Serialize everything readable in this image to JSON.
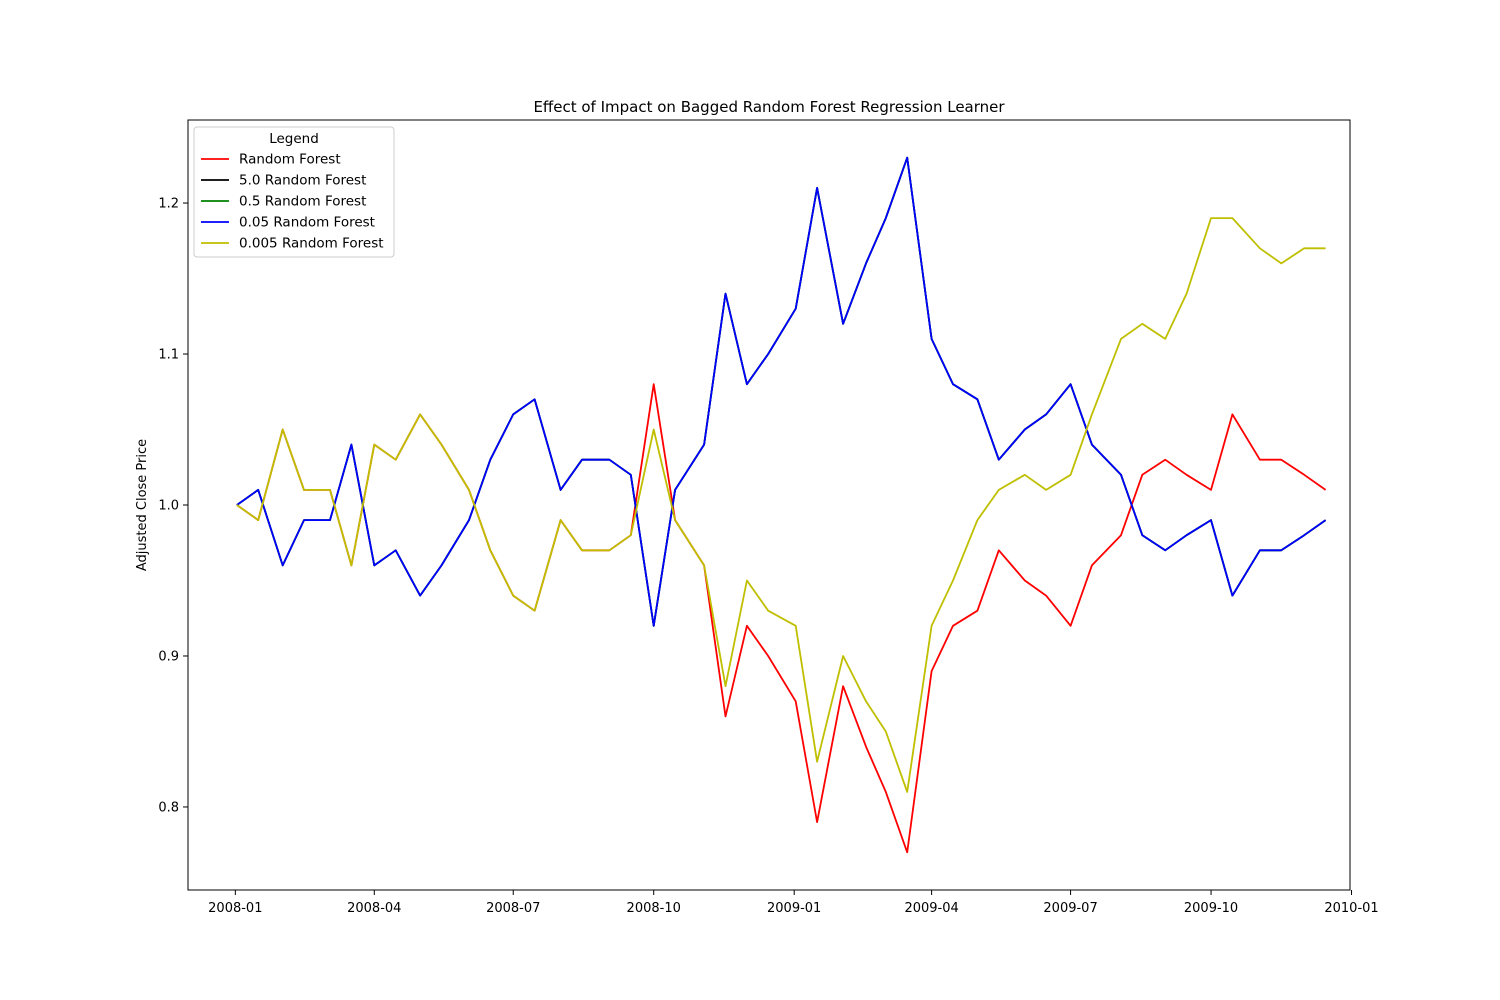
{
  "chart_data": {
    "type": "line",
    "title": "Effect of Impact on Bagged Random Forest Regression Learner",
    "xlabel": "",
    "ylabel": "Adjusted Close Price",
    "xlim": [
      "2007-12-01",
      "2009-12-31"
    ],
    "ylim": [
      0.745,
      1.255
    ],
    "x_ticks": [
      "2008-01",
      "2008-04",
      "2008-07",
      "2008-10",
      "2009-01",
      "2009-04",
      "2009-07",
      "2009-10",
      "2010-01"
    ],
    "y_ticks": [
      "0.8",
      "0.9",
      "1.0",
      "1.1",
      "1.2"
    ],
    "grid": false,
    "legend": {
      "title": "Legend",
      "position": "upper-left"
    },
    "x": [
      "2008-01-02",
      "2008-01-16",
      "2008-02-01",
      "2008-02-15",
      "2008-03-03",
      "2008-03-17",
      "2008-04-01",
      "2008-04-15",
      "2008-05-01",
      "2008-05-15",
      "2008-06-02",
      "2008-06-16",
      "2008-07-01",
      "2008-07-15",
      "2008-08-01",
      "2008-08-15",
      "2008-09-02",
      "2008-09-16",
      "2008-10-01",
      "2008-10-15",
      "2008-11-03",
      "2008-11-17",
      "2008-12-01",
      "2008-12-15",
      "2009-01-02",
      "2009-01-16",
      "2009-02-02",
      "2009-02-17",
      "2009-03-02",
      "2009-03-16",
      "2009-04-01",
      "2009-04-15",
      "2009-05-01",
      "2009-05-15",
      "2009-06-01",
      "2009-06-15",
      "2009-07-01",
      "2009-07-15",
      "2009-08-03",
      "2009-08-17",
      "2009-09-01",
      "2009-09-15",
      "2009-10-01",
      "2009-10-15",
      "2009-11-02",
      "2009-11-16",
      "2009-12-01",
      "2009-12-15"
    ],
    "series": [
      {
        "name": "Random Forest",
        "color": "#ff0000",
        "values": [
          1.0,
          0.99,
          1.05,
          1.01,
          1.01,
          0.96,
          1.04,
          1.03,
          1.06,
          1.04,
          1.01,
          0.97,
          0.94,
          0.93,
          0.99,
          0.97,
          0.97,
          0.98,
          1.08,
          0.99,
          0.96,
          0.86,
          0.92,
          0.9,
          0.87,
          0.79,
          0.88,
          0.84,
          0.81,
          0.77,
          0.89,
          0.92,
          0.93,
          0.97,
          0.95,
          0.94,
          0.92,
          0.96,
          0.98,
          1.02,
          1.03,
          1.02,
          1.01,
          1.06,
          1.03,
          1.03,
          1.02,
          1.01
        ]
      },
      {
        "name": "5.0 Random Forest",
        "color": "#000000",
        "values": [
          1.0,
          1.01,
          0.96,
          0.99,
          0.99,
          1.04,
          0.96,
          0.97,
          0.94,
          0.96,
          0.99,
          1.03,
          1.06,
          1.07,
          1.01,
          1.03,
          1.03,
          1.02,
          0.92,
          1.01,
          1.04,
          1.14,
          1.08,
          1.1,
          1.13,
          1.21,
          1.12,
          1.16,
          1.19,
          1.23,
          1.11,
          1.08,
          1.07,
          1.03,
          1.05,
          1.06,
          1.08,
          1.04,
          1.02,
          0.98,
          0.97,
          0.98,
          0.99,
          0.94,
          0.97,
          0.97,
          0.98,
          0.99
        ]
      },
      {
        "name": "0.5 Random Forest",
        "color": "#008000",
        "values": [
          1.0,
          1.01,
          0.96,
          0.99,
          0.99,
          1.04,
          0.96,
          0.97,
          0.94,
          0.96,
          0.99,
          1.03,
          1.06,
          1.07,
          1.01,
          1.03,
          1.03,
          1.02,
          0.92,
          1.01,
          1.04,
          1.14,
          1.08,
          1.1,
          1.13,
          1.21,
          1.12,
          1.16,
          1.19,
          1.23,
          1.11,
          1.08,
          1.07,
          1.03,
          1.05,
          1.06,
          1.08,
          1.04,
          1.02,
          0.98,
          0.97,
          0.98,
          0.99,
          0.94,
          0.97,
          0.97,
          0.98,
          0.99
        ]
      },
      {
        "name": "0.05 Random Forest",
        "color": "#0000ff",
        "values": [
          1.0,
          1.01,
          0.96,
          0.99,
          0.99,
          1.04,
          0.96,
          0.97,
          0.94,
          0.96,
          0.99,
          1.03,
          1.06,
          1.07,
          1.01,
          1.03,
          1.03,
          1.02,
          0.92,
          1.01,
          1.04,
          1.14,
          1.08,
          1.1,
          1.13,
          1.21,
          1.12,
          1.16,
          1.19,
          1.23,
          1.11,
          1.08,
          1.07,
          1.03,
          1.05,
          1.06,
          1.08,
          1.04,
          1.02,
          0.98,
          0.97,
          0.98,
          0.99,
          0.94,
          0.97,
          0.97,
          0.98,
          0.99
        ]
      },
      {
        "name": "0.005 Random Forest",
        "color": "#bfbf00",
        "values": [
          1.0,
          0.99,
          1.05,
          1.01,
          1.01,
          0.96,
          1.04,
          1.03,
          1.06,
          1.04,
          1.01,
          0.97,
          0.94,
          0.93,
          0.99,
          0.97,
          0.97,
          0.98,
          1.05,
          0.99,
          0.96,
          0.88,
          0.95,
          0.93,
          0.92,
          0.83,
          0.9,
          0.87,
          0.85,
          0.81,
          0.92,
          0.95,
          0.99,
          1.01,
          1.02,
          1.01,
          1.02,
          1.06,
          1.11,
          1.12,
          1.11,
          1.14,
          1.19,
          1.19,
          1.17,
          1.16,
          1.17,
          1.17
        ]
      }
    ]
  }
}
